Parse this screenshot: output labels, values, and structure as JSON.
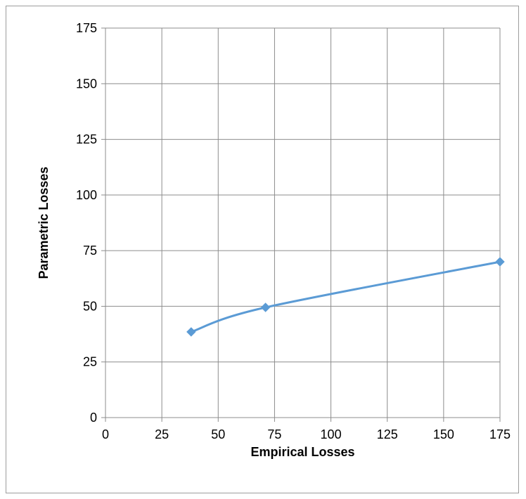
{
  "chart_data": {
    "type": "line",
    "title": "",
    "xlabel": "Empirical Losses",
    "ylabel": "Parametric Losses",
    "xlim": [
      0,
      175
    ],
    "ylim": [
      0,
      175
    ],
    "xticks": [
      0,
      25,
      50,
      75,
      100,
      125,
      150,
      175
    ],
    "yticks": [
      0,
      25,
      50,
      75,
      100,
      125,
      150,
      175
    ],
    "grid": true,
    "legend": "none",
    "smooth": true,
    "marker": "diamond",
    "series": [
      {
        "color": "#5b9bd5",
        "points": [
          {
            "x": 38,
            "y": 38.5
          },
          {
            "x": 71,
            "y": 49.5
          },
          {
            "x": 175,
            "y": 70
          }
        ]
      }
    ]
  }
}
